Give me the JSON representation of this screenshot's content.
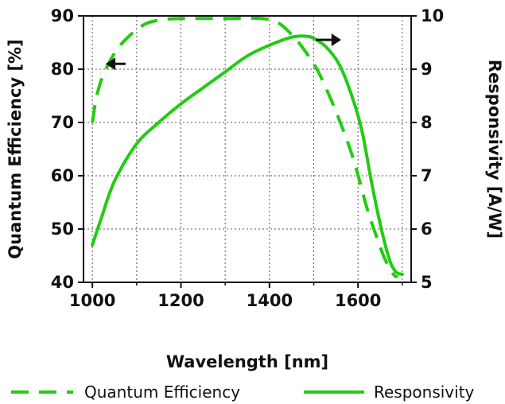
{
  "chart_data": {
    "type": "line",
    "xlabel": "Wavelength [nm]",
    "ylabel_left": "Quantum Efficiency [%]",
    "ylabel_right": "Responsivity [A/W]",
    "xlim": [
      980,
      1720
    ],
    "ylim_left": [
      40,
      90
    ],
    "ylim_right": [
      5,
      10
    ],
    "x_ticks": [
      1000,
      1200,
      1400,
      1600
    ],
    "x_minor_ticks": [
      1100,
      1300,
      1500,
      1700
    ],
    "y_left_ticks": [
      40,
      50,
      60,
      70,
      80,
      90
    ],
    "y_right_ticks": [
      5,
      6,
      7,
      8,
      9,
      10
    ],
    "grid": true,
    "legend_position": "bottom",
    "line_color": "#22cc11",
    "series": [
      {
        "name": "Quantum Efficiency",
        "axis": "left",
        "style": "dashed",
        "x": [
          1000,
          1010,
          1025,
          1050,
          1080,
          1120,
          1160,
          1200,
          1300,
          1400,
          1450,
          1500,
          1530,
          1560,
          1590,
          1620,
          1640,
          1660,
          1680,
          1690
        ],
        "y": [
          70,
          75,
          79,
          83,
          86,
          88.5,
          89.3,
          89.5,
          89.5,
          89.3,
          86.5,
          81,
          76,
          70,
          63,
          54,
          49,
          44.5,
          41.5,
          41
        ]
      },
      {
        "name": "Responsivity",
        "axis": "right",
        "style": "solid",
        "x": [
          1000,
          1020,
          1050,
          1100,
          1150,
          1200,
          1250,
          1300,
          1350,
          1400,
          1450,
          1480,
          1500,
          1530,
          1560,
          1590,
          1610,
          1630,
          1650,
          1670,
          1685,
          1700
        ],
        "y": [
          5.7,
          6.2,
          6.9,
          7.6,
          8.0,
          8.35,
          8.65,
          8.95,
          9.25,
          9.45,
          9.6,
          9.62,
          9.58,
          9.4,
          9.05,
          8.4,
          7.8,
          6.9,
          6.1,
          5.45,
          5.2,
          5.15
        ]
      }
    ],
    "annotations": [
      {
        "kind": "arrow",
        "series": "Quantum Efficiency",
        "direction": "left"
      },
      {
        "kind": "arrow",
        "series": "Responsivity",
        "direction": "right"
      }
    ]
  }
}
